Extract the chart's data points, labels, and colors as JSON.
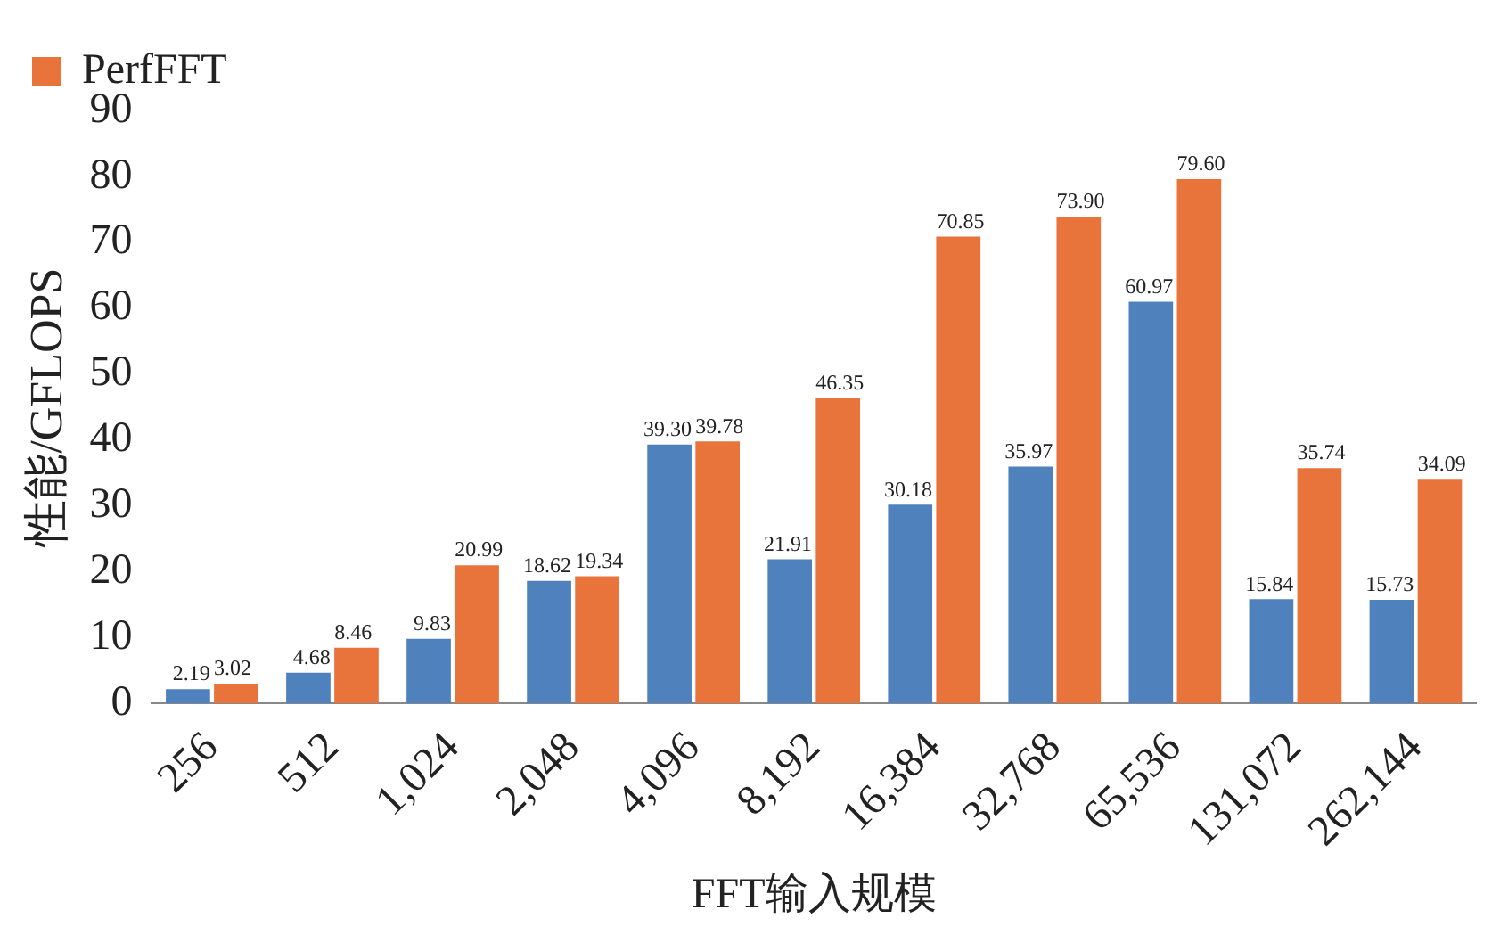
{
  "chart_data": {
    "type": "bar",
    "xlabel": "FFT输入规模",
    "ylabel": "性能/GFLOPS",
    "categories": [
      "256",
      "512",
      "1,024",
      "2,048",
      "4,096",
      "8,192",
      "16,384",
      "32,768",
      "65,536",
      "131,072",
      "262,144"
    ],
    "series": [
      {
        "color": "#4f81bd",
        "values": [
          2.19,
          4.68,
          9.83,
          18.62,
          39.3,
          21.91,
          30.18,
          35.97,
          60.97,
          15.84,
          15.73
        ],
        "value_labels": [
          "2.19",
          "4.68",
          "9.83",
          "18.62",
          "39.30",
          "21.91",
          "30.18",
          "35.97",
          "60.97",
          "15.84",
          "15.73"
        ]
      },
      {
        "name": "PerfFFT",
        "color": "#e8743b",
        "values": [
          3.02,
          8.46,
          20.99,
          19.34,
          39.78,
          46.35,
          70.85,
          73.9,
          79.6,
          35.74,
          34.09
        ],
        "value_labels": [
          "3.02",
          "8.46",
          "20.99",
          "19.34",
          "39.78",
          "46.35",
          "70.85",
          "73.90",
          "79.60",
          "35.74",
          "34.09"
        ]
      }
    ],
    "ylim": [
      0,
      90
    ],
    "yticks": [
      0,
      10,
      20,
      30,
      40,
      50,
      60,
      70,
      80,
      90
    ],
    "grid": false,
    "legend": "top left"
  }
}
